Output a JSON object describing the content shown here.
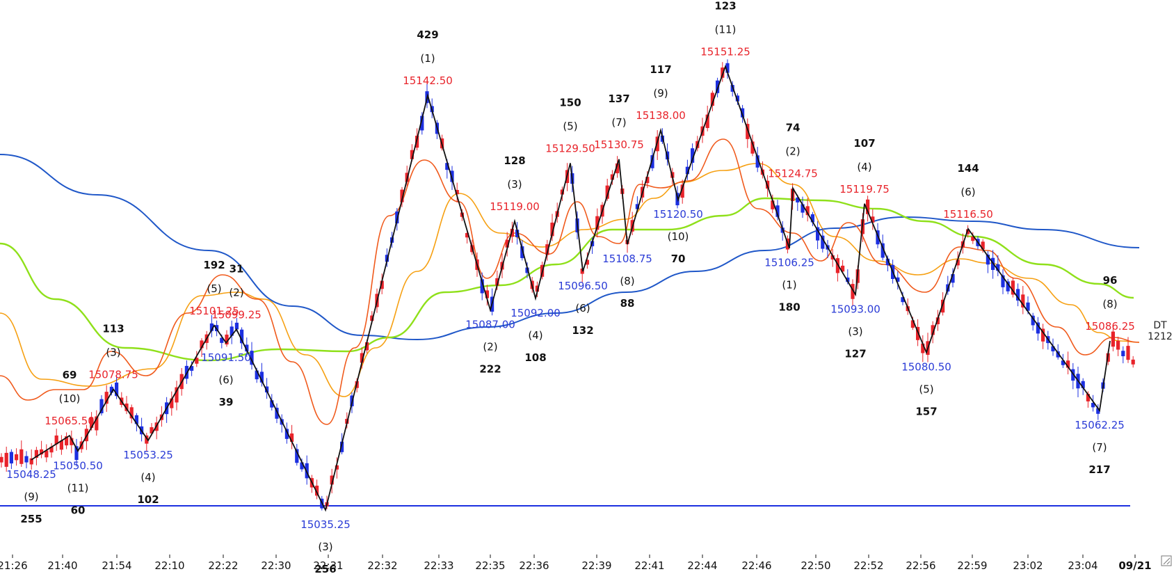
{
  "chart_data": {
    "type": "candlestick",
    "title": "",
    "instrument_tag": "DT",
    "instrument_value": "1212",
    "ylim": [
      15025,
      15160
    ],
    "support_level": 15035.25,
    "colors": {
      "up_candle": "#e8232a",
      "down_candle": "#1c2fe0",
      "zigzag": "#111111",
      "ma_orange": "#f6a012",
      "ma_red": "#f05a1c",
      "ma_green": "#8fe01a",
      "ma_blue": "#1f57c8",
      "support": "#1c2fe0"
    },
    "x_ticks": [
      {
        "label": "21:26",
        "bold": false
      },
      {
        "label": "21:40",
        "bold": false
      },
      {
        "label": "21:54",
        "bold": false
      },
      {
        "label": "22:10",
        "bold": false
      },
      {
        "label": "22:22",
        "bold": false
      },
      {
        "label": "22:30",
        "bold": false
      },
      {
        "label": "22:31",
        "bold": false
      },
      {
        "label": "22:32",
        "bold": false
      },
      {
        "label": "22:33",
        "bold": false
      },
      {
        "label": "22:35",
        "bold": false
      },
      {
        "label": "22:36",
        "bold": false
      },
      {
        "label": "22:39",
        "bold": false
      },
      {
        "label": "22:41",
        "bold": false
      },
      {
        "label": "22:44",
        "bold": false
      },
      {
        "label": "22:46",
        "bold": false
      },
      {
        "label": "22:50",
        "bold": false
      },
      {
        "label": "22:52",
        "bold": false
      },
      {
        "label": "22:56",
        "bold": false
      },
      {
        "label": "22:59",
        "bold": false
      },
      {
        "label": "23:02",
        "bold": false
      },
      {
        "label": "23:04",
        "bold": false
      },
      {
        "label": "09/21",
        "bold": true
      }
    ],
    "swings": [
      {
        "type": "low",
        "price": "15048.25",
        "index": "(9)",
        "count": "255",
        "px": 15048.25
      },
      {
        "type": "high",
        "price": "15065.50",
        "index": "(10)",
        "count": "69",
        "px": 15054.5
      },
      {
        "type": "low",
        "price": "15050.50",
        "index": "(11)",
        "count": "60",
        "px": 15050.5
      },
      {
        "type": "high",
        "price": "15078.75",
        "index": "(3)",
        "count": "113",
        "px": 15066.5
      },
      {
        "type": "low",
        "price": "15053.25",
        "index": "(4)",
        "count": "102",
        "px": 15053.25
      },
      {
        "type": "high",
        "price": "15101.25",
        "index": "(5)",
        "count": "192",
        "px": 15083.0
      },
      {
        "type": "low",
        "price": "15091.50",
        "index": "(6)",
        "count": "39",
        "px": 15078.5
      },
      {
        "type": "high",
        "price": "15099.25",
        "index": "(2)",
        "count": "31",
        "px": 15082.0
      },
      {
        "type": "low",
        "price": "15035.25",
        "index": "(3)",
        "count": "256",
        "px": 15035.25
      },
      {
        "type": "high",
        "price": "15142.50",
        "index": "(1)",
        "count": "429",
        "px": 15142.5
      },
      {
        "type": "low",
        "price": "15087.00",
        "index": "(2)",
        "count": "222",
        "px": 15087.0
      },
      {
        "type": "high",
        "price": "15119.00",
        "index": "(3)",
        "count": "128",
        "px": 15110.0
      },
      {
        "type": "low",
        "price": "15092.00",
        "index": "(4)",
        "count": "108",
        "px": 15090.0
      },
      {
        "type": "high",
        "price": "15129.50",
        "index": "(5)",
        "count": "150",
        "px": 15125.0
      },
      {
        "type": "low",
        "price": "15096.50",
        "index": "(6)",
        "count": "132",
        "px": 15097.0
      },
      {
        "type": "high",
        "price": "15130.75",
        "index": "(7)",
        "count": "137",
        "px": 15126.0
      },
      {
        "type": "low",
        "price": "15108.75",
        "index": "(8)",
        "count": "88",
        "px": 15104.0
      },
      {
        "type": "high",
        "price": "15138.00",
        "index": "(9)",
        "count": "117",
        "px": 15133.5
      },
      {
        "type": "low",
        "price": "15120.50",
        "index": "(10)",
        "count": "70",
        "px": 15115.5
      },
      {
        "type": "high",
        "price": "15151.25",
        "index": "(11)",
        "count": "123",
        "px": 15150.0
      },
      {
        "type": "low",
        "price": "15106.25",
        "index": "(1)",
        "count": "180",
        "px": 15103.0
      },
      {
        "type": "high",
        "price": "15124.75",
        "index": "(2)",
        "count": "74",
        "px": 15118.5
      },
      {
        "type": "low",
        "price": "15093.00",
        "index": "(3)",
        "count": "127",
        "px": 15091.0
      },
      {
        "type": "high",
        "price": "15119.75",
        "index": "(4)",
        "count": "107",
        "px": 15114.5
      },
      {
        "type": "low",
        "price": "15080.50",
        "index": "(5)",
        "count": "157",
        "px": 15076.0
      },
      {
        "type": "high",
        "price": "15116.50",
        "index": "(6)",
        "count": "144",
        "px": 15108.0
      },
      {
        "type": "low",
        "price": "15062.25",
        "index": "(7)",
        "count": "217",
        "px": 15061.0
      },
      {
        "type": "high",
        "price": "15086.25",
        "index": "(8)",
        "count": "96",
        "px": 15079.0
      }
    ],
    "last_price": 15072.0
  }
}
